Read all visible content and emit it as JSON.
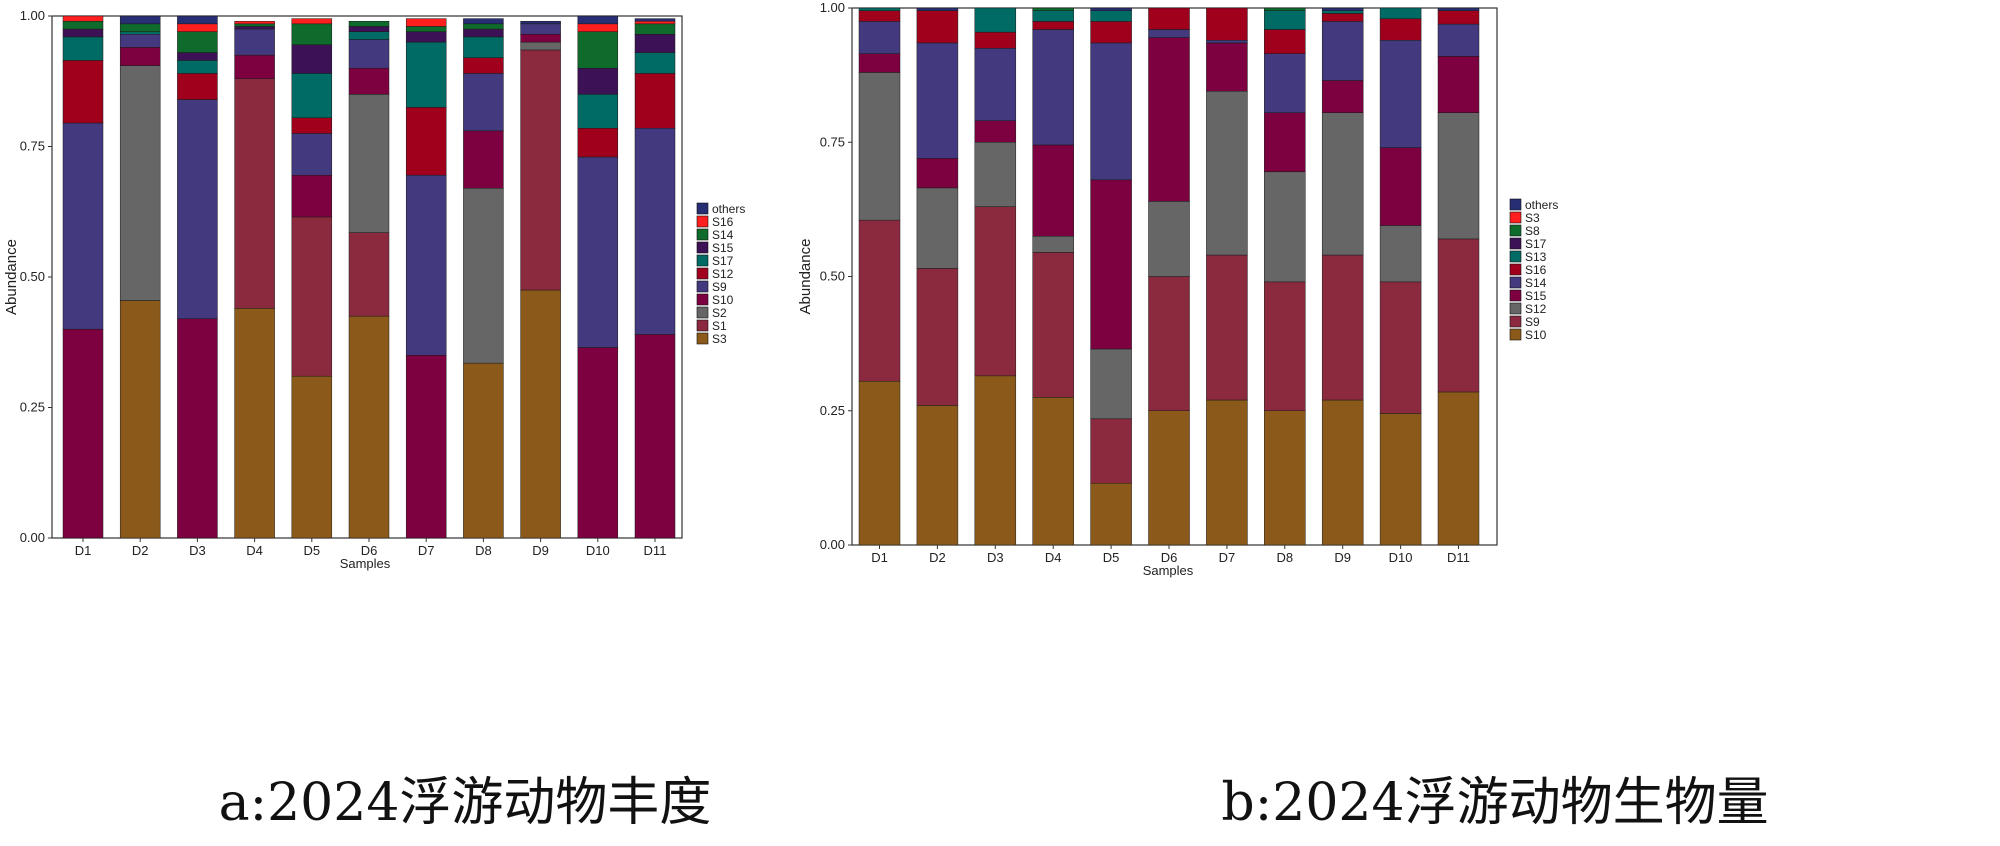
{
  "chart_data": [
    {
      "type": "stacked-bar",
      "xlabel": "Samples",
      "ylabel": "Abundance",
      "ylim": [
        0,
        1
      ],
      "yticks": [
        "0.00",
        "0.25",
        "0.50",
        "0.75",
        "1.00"
      ],
      "categories": [
        "D1",
        "D2",
        "D3",
        "D4",
        "D5",
        "D6",
        "D7",
        "D8",
        "D9",
        "D10",
        "D11"
      ],
      "caption": "a:2024浮游动物丰度",
      "legend_position": "right",
      "legend": [
        "others",
        "S16",
        "S14",
        "S15",
        "S17",
        "S12",
        "S9",
        "S10",
        "S2",
        "S1",
        "S3"
      ],
      "series": [
        {
          "name": "S10",
          "color": "#7d0040",
          "values": [
            0.4,
            0.0,
            0.42,
            0.0,
            0.0,
            0.0,
            0.35,
            0.0,
            0.0,
            0.365,
            0.39
          ]
        },
        {
          "name": "S3",
          "color": "#8b5a1b",
          "values": [
            0.0,
            0.455,
            0.0,
            0.44,
            0.31,
            0.425,
            0.0,
            0.335,
            0.475,
            0.0,
            0.0
          ]
        },
        {
          "name": "S1",
          "color": "#8b2a3f",
          "values": [
            0.0,
            0.0,
            0.0,
            0.44,
            0.305,
            0.16,
            0.0,
            0.0,
            0.46,
            0.0,
            0.0
          ]
        },
        {
          "name": "S2",
          "color": "#666666",
          "values": [
            0.0,
            0.45,
            0.0,
            0.0,
            0.0,
            0.265,
            0.0,
            0.335,
            0.015,
            0.0,
            0.0
          ]
        },
        {
          "name": "S10b",
          "legend_name": "S10",
          "color": "#7d0040",
          "values": [
            0.0,
            0.035,
            0.0,
            0.045,
            0.08,
            0.05,
            0.0,
            0.11,
            0.015,
            0.0,
            0.0
          ]
        },
        {
          "name": "S9",
          "color": "#43397e",
          "values": [
            0.395,
            0.025,
            0.42,
            0.05,
            0.08,
            0.055,
            0.345,
            0.11,
            0.02,
            0.365,
            0.395
          ]
        },
        {
          "name": "S12",
          "color": "#a0001c",
          "values": [
            0.12,
            0.0,
            0.05,
            0.0,
            0.03,
            0.0,
            0.13,
            0.03,
            0.0,
            0.055,
            0.105
          ]
        },
        {
          "name": "S17",
          "color": "#006a64",
          "values": [
            0.045,
            0.005,
            0.025,
            0.0,
            0.085,
            0.015,
            0.125,
            0.04,
            0.0,
            0.065,
            0.04
          ]
        },
        {
          "name": "S15",
          "color": "#3d1155",
          "values": [
            0.015,
            0.0,
            0.015,
            0.005,
            0.055,
            0.01,
            0.02,
            0.015,
            0.0,
            0.05,
            0.035
          ]
        },
        {
          "name": "S14",
          "color": "#0e6b2c",
          "values": [
            0.015,
            0.015,
            0.04,
            0.005,
            0.04,
            0.01,
            0.01,
            0.01,
            0.0,
            0.07,
            0.02
          ]
        },
        {
          "name": "S16",
          "color": "#ff1f1f",
          "values": [
            0.01,
            0.0,
            0.015,
            0.005,
            0.01,
            0.0,
            0.015,
            0.0,
            0.0,
            0.015,
            0.005
          ]
        },
        {
          "name": "others",
          "color": "#272e73",
          "values": [
            0.0,
            0.015,
            0.015,
            0.0,
            0.0,
            0.0,
            0.0,
            0.01,
            0.005,
            0.015,
            0.005
          ]
        }
      ]
    },
    {
      "type": "stacked-bar",
      "xlabel": "Samples",
      "ylabel": "Abundance",
      "ylim": [
        0,
        1
      ],
      "yticks": [
        "0.00",
        "0.25",
        "0.50",
        "0.75",
        "1.00"
      ],
      "categories": [
        "D1",
        "D2",
        "D3",
        "D4",
        "D5",
        "D6",
        "D7",
        "D8",
        "D9",
        "D10",
        "D11"
      ],
      "caption": "b:2024浮游动物生物量",
      "legend_position": "right",
      "legend": [
        "others",
        "S3",
        "S8",
        "S17",
        "S13",
        "S16",
        "S14",
        "S15",
        "S12",
        "S9",
        "S10"
      ],
      "series": [
        {
          "name": "S10",
          "color": "#8b5a1b",
          "values": [
            0.305,
            0.26,
            0.315,
            0.275,
            0.115,
            0.25,
            0.27,
            0.25,
            0.27,
            0.245,
            0.285
          ]
        },
        {
          "name": "S9",
          "color": "#8b2a3f",
          "values": [
            0.3,
            0.255,
            0.315,
            0.27,
            0.12,
            0.25,
            0.27,
            0.24,
            0.27,
            0.245,
            0.285
          ]
        },
        {
          "name": "S12",
          "color": "#666666",
          "values": [
            0.275,
            0.15,
            0.12,
            0.03,
            0.13,
            0.14,
            0.305,
            0.205,
            0.265,
            0.105,
            0.235
          ]
        },
        {
          "name": "S15",
          "color": "#7d0040",
          "values": [
            0.035,
            0.055,
            0.04,
            0.17,
            0.315,
            0.305,
            0.09,
            0.11,
            0.06,
            0.145,
            0.105
          ]
        },
        {
          "name": "S14",
          "color": "#43397e",
          "values": [
            0.06,
            0.215,
            0.135,
            0.215,
            0.255,
            0.015,
            0.005,
            0.11,
            0.11,
            0.2,
            0.06
          ]
        },
        {
          "name": "S16",
          "color": "#a0001c",
          "values": [
            0.02,
            0.06,
            0.03,
            0.015,
            0.04,
            0.04,
            0.06,
            0.045,
            0.015,
            0.04,
            0.025
          ]
        },
        {
          "name": "S13",
          "color": "#006a64",
          "values": [
            0.005,
            0.0,
            0.045,
            0.02,
            0.02,
            0.0,
            0.0,
            0.035,
            0.005,
            0.02,
            0.0
          ]
        },
        {
          "name": "S17",
          "color": "#3d1155",
          "values": [
            0.0,
            0.0,
            0.0,
            0.0,
            0.0,
            0.0,
            0.0,
            0.0,
            0.0,
            0.0,
            0.0
          ]
        },
        {
          "name": "S8",
          "color": "#0e6b2c",
          "values": [
            0.0,
            0.0,
            0.0,
            0.005,
            0.0,
            0.0,
            0.0,
            0.005,
            0.0,
            0.0,
            0.0
          ]
        },
        {
          "name": "S3",
          "color": "#ff1f1f",
          "values": [
            0.0,
            0.0,
            0.0,
            0.0,
            0.0,
            0.0,
            0.0,
            0.0,
            0.0,
            0.0,
            0.0
          ]
        },
        {
          "name": "others",
          "color": "#272e73",
          "values": [
            0.0,
            0.005,
            0.0,
            0.0,
            0.005,
            0.0,
            0.0,
            0.0,
            0.005,
            0.0,
            0.005
          ]
        }
      ]
    }
  ]
}
